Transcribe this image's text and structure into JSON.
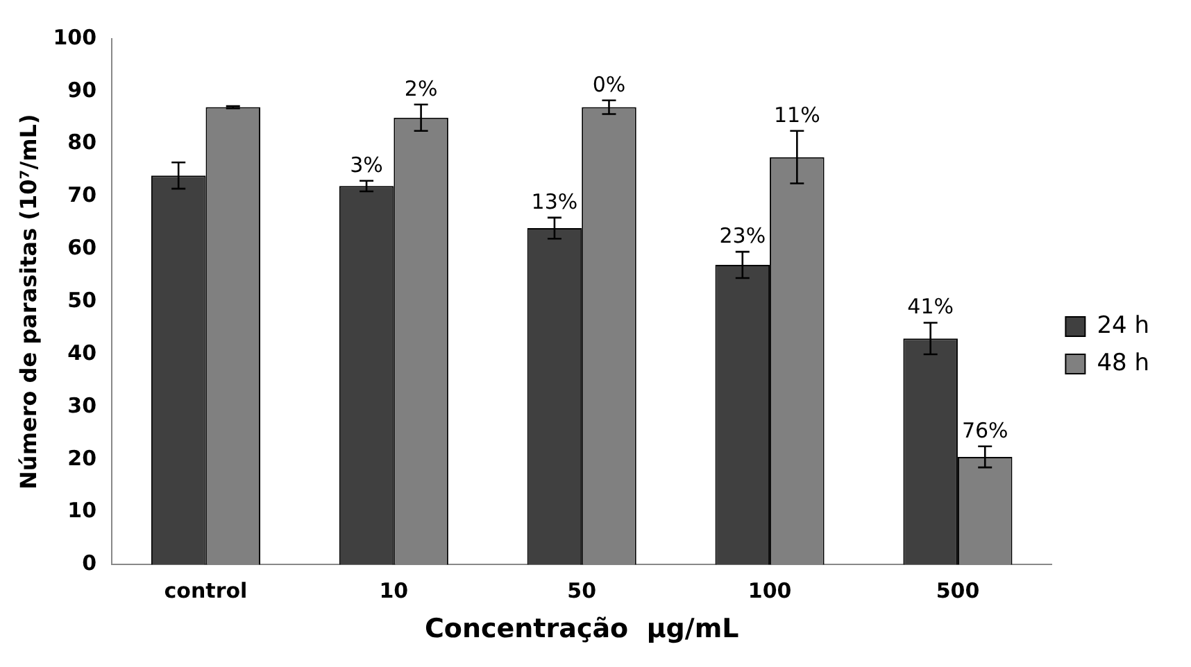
{
  "chart_data": {
    "type": "bar",
    "xlabel": "Concentração  µg/mL",
    "ylabel": "Número de parasitas (10⁷/mL)",
    "categories": [
      "control",
      "10",
      "50",
      "100",
      "500"
    ],
    "series": [
      {
        "name": "24 h",
        "color": "#404040",
        "values": [
          74,
          72,
          64,
          57,
          43
        ],
        "errors": [
          2.5,
          1,
          2,
          2.5,
          3
        ]
      },
      {
        "name": "48 h",
        "color": "#808080",
        "values": [
          87,
          85,
          87,
          77.5,
          20.5
        ],
        "errors": [
          0.2,
          2.5,
          1.3,
          5,
          2
        ]
      }
    ],
    "annotations": [
      {
        "text": "3%",
        "x": "10",
        "y": 72
      },
      {
        "text": "2%",
        "x": "10",
        "y": 85
      },
      {
        "text": "13%",
        "x": "50",
        "y": 64
      },
      {
        "text": "0%",
        "x": "50",
        "y": 87
      },
      {
        "text": "23%",
        "x": "100",
        "y": 57
      },
      {
        "text": "11%",
        "x": "100",
        "y": 77.5
      },
      {
        "text": "41%",
        "x": "500",
        "y": 43
      },
      {
        "text": "76%",
        "x": "500",
        "y": 20.5
      }
    ],
    "ylim": [
      0,
      100
    ],
    "yticks": [
      0,
      10,
      20,
      30,
      40,
      50,
      60,
      70,
      80,
      90,
      100
    ],
    "grid": false,
    "legend": "right"
  }
}
